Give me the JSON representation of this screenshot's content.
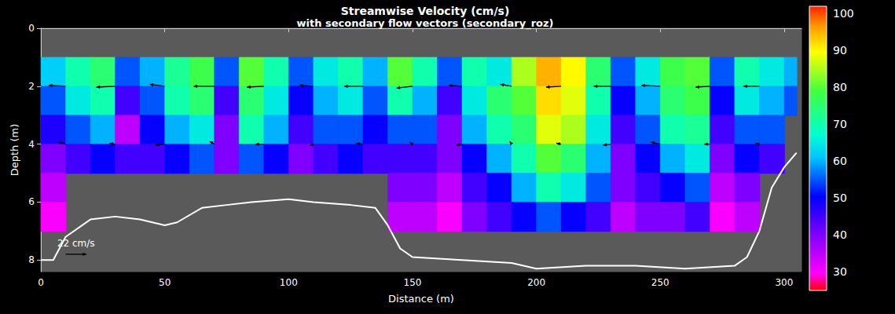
{
  "chart_data": {
    "type": "heatmap",
    "title": "Streamwise Velocity (cm/s)",
    "subtitle": "with secondary flow vectors (secondary_roz)",
    "x_label": "Distance (m)",
    "y_label": "Depth (m)",
    "xlim": [
      0,
      307
    ],
    "xticks": [
      0,
      50,
      100,
      150,
      200,
      250,
      300
    ],
    "ylim": [
      0,
      8.4
    ],
    "yticks": [
      0,
      2,
      4,
      6,
      8
    ],
    "grid": false,
    "x_edges": [
      0,
      10,
      20,
      30,
      40,
      50,
      60,
      70,
      80,
      90,
      100,
      110,
      120,
      130,
      140,
      150,
      160,
      170,
      180,
      190,
      200,
      210,
      220,
      230,
      240,
      250,
      260,
      270,
      280,
      290,
      300,
      305
    ],
    "depth_edges": [
      1,
      2,
      3,
      4,
      5,
      6,
      7
    ],
    "velocity": [
      [
        62,
        55,
        48,
        40,
        35,
        30
      ],
      [
        70,
        65,
        55,
        45,
        null,
        null
      ],
      [
        75,
        70,
        60,
        50,
        null,
        null
      ],
      [
        55,
        45,
        35,
        45,
        null,
        null
      ],
      [
        60,
        55,
        50,
        45,
        null,
        null
      ],
      [
        72,
        70,
        60,
        50,
        null,
        null
      ],
      [
        78,
        75,
        65,
        55,
        null,
        null
      ],
      [
        55,
        45,
        40,
        40,
        null,
        null
      ],
      [
        80,
        75,
        70,
        55,
        null,
        null
      ],
      [
        70,
        65,
        60,
        50,
        null,
        null
      ],
      [
        55,
        50,
        45,
        40,
        null,
        null
      ],
      [
        65,
        60,
        55,
        45,
        null,
        null
      ],
      [
        70,
        65,
        55,
        50,
        null,
        null
      ],
      [
        60,
        55,
        50,
        45,
        null,
        null
      ],
      [
        80,
        70,
        55,
        45,
        40,
        35
      ],
      [
        70,
        60,
        55,
        45,
        40,
        35
      ],
      [
        55,
        45,
        40,
        40,
        35,
        30
      ],
      [
        70,
        65,
        60,
        50,
        45,
        40
      ],
      [
        65,
        75,
        70,
        60,
        50,
        45
      ],
      [
        85,
        80,
        75,
        70,
        60,
        50
      ],
      [
        95,
        92,
        88,
        80,
        70,
        55
      ],
      [
        90,
        88,
        85,
        75,
        65,
        50
      ],
      [
        75,
        70,
        65,
        60,
        55,
        45
      ],
      [
        55,
        50,
        45,
        40,
        40,
        35
      ],
      [
        65,
        60,
        55,
        50,
        45,
        40
      ],
      [
        78,
        75,
        70,
        60,
        50,
        40
      ],
      [
        80,
        78,
        72,
        65,
        55,
        45
      ],
      [
        55,
        50,
        45,
        40,
        35,
        30
      ],
      [
        70,
        65,
        55,
        50,
        40,
        35
      ],
      [
        65,
        60,
        55,
        45,
        null,
        null
      ],
      [
        60,
        55,
        null,
        null,
        null,
        null
      ]
    ],
    "colorbar": {
      "range": [
        25,
        102
      ],
      "ticks": [
        30,
        40,
        50,
        60,
        70,
        80,
        90,
        100
      ]
    },
    "bed": {
      "color": "#ffffff",
      "x": [
        0,
        5,
        10,
        20,
        30,
        40,
        50,
        55,
        65,
        75,
        85,
        100,
        110,
        125,
        135,
        140,
        145,
        150,
        170,
        190,
        200,
        220,
        240,
        260,
        280,
        285,
        290,
        295,
        300,
        305
      ],
      "depth": [
        8.0,
        8.0,
        7.2,
        6.6,
        6.5,
        6.6,
        6.8,
        6.7,
        6.2,
        6.1,
        6.0,
        5.9,
        6.0,
        6.1,
        6.2,
        6.8,
        7.6,
        7.9,
        8.0,
        8.1,
        8.3,
        8.2,
        8.2,
        8.3,
        8.2,
        7.9,
        7.0,
        5.5,
        4.8,
        4.3
      ]
    },
    "secondary_vectors": {
      "color": "#000000",
      "x": [
        10,
        30,
        50,
        70,
        90,
        110,
        130,
        150,
        170,
        190,
        210,
        230,
        250,
        270,
        290,
        10,
        30,
        50,
        70,
        90,
        110,
        130,
        150,
        170,
        190,
        210,
        230,
        250,
        270,
        290
      ],
      "depth": [
        2,
        2,
        2,
        2,
        2,
        2,
        2,
        2,
        2,
        2,
        2,
        2,
        2,
        2,
        2,
        4,
        4,
        4,
        4,
        4,
        4,
        4,
        4,
        4,
        4,
        4,
        4,
        4,
        4,
        4
      ],
      "u": [
        -18,
        -20,
        -16,
        -22,
        -18,
        -15,
        -20,
        -17,
        -14,
        -12,
        -16,
        -18,
        -20,
        -15,
        -17,
        -8,
        -6,
        -10,
        -5,
        -9,
        -4,
        -7,
        -3,
        -6,
        -2,
        -5,
        -8,
        -10,
        -6,
        -4
      ],
      "w": [
        1,
        -1,
        2,
        0,
        -1,
        1,
        0,
        -2,
        1,
        2,
        -1,
        0,
        1,
        -1,
        0,
        2,
        1,
        -1,
        3,
        0,
        -2,
        1,
        2,
        -1,
        3,
        1,
        -1,
        2,
        0,
        1
      ]
    },
    "vector_scale": {
      "label": "22 cm/s",
      "value": 22,
      "x": 10,
      "depth": 7.8
    }
  }
}
